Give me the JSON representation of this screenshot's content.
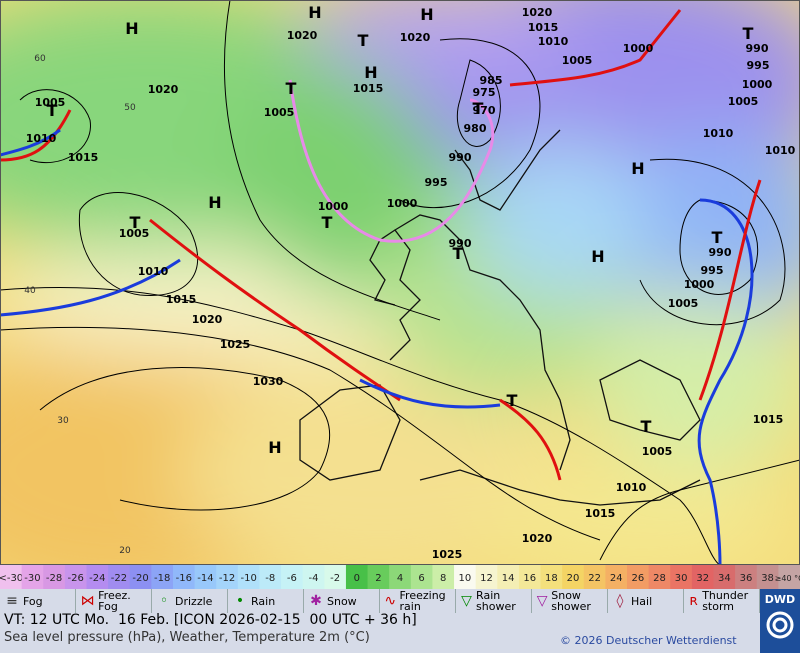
{
  "map": {
    "isobar_labels": [
      "1020",
      "1020",
      "1020",
      "1015",
      "1010",
      "1005",
      "1000",
      "990",
      "995",
      "1000",
      "1005",
      "1010",
      "1010",
      "1015",
      "1020",
      "1005",
      "1010",
      "1015",
      "1005",
      "985",
      "975",
      "970",
      "980",
      "990",
      "995",
      "1000",
      "1000",
      "990",
      "1005",
      "1010",
      "1015",
      "1020",
      "1025",
      "1030",
      "990",
      "995",
      "1000",
      "1005",
      "1005",
      "1010",
      "1015",
      "1015",
      "1020",
      "1025"
    ],
    "pressure_centers": [
      "H",
      "H",
      "H",
      "H",
      "H",
      "H",
      "H",
      "H",
      "T",
      "T",
      "T",
      "T",
      "T",
      "T",
      "T",
      "T",
      "T",
      "T",
      "T"
    ],
    "temperature_labels": [
      "60",
      "50",
      "40",
      "30",
      "20"
    ]
  },
  "scale": {
    "cells": [
      {
        "label": "<-30",
        "color": "#f0c0ee"
      },
      {
        "label": "-30",
        "color": "#e4a4e8"
      },
      {
        "label": "-28",
        "color": "#d898e4"
      },
      {
        "label": "-26",
        "color": "#c894ec"
      },
      {
        "label": "-24",
        "color": "#b48cf0"
      },
      {
        "label": "-22",
        "color": "#a08cf0"
      },
      {
        "label": "-20",
        "color": "#8c90f2"
      },
      {
        "label": "-18",
        "color": "#8ca4f6"
      },
      {
        "label": "-16",
        "color": "#90b8fa"
      },
      {
        "label": "-14",
        "color": "#98c8fa"
      },
      {
        "label": "-12",
        "color": "#a4d4fa"
      },
      {
        "label": "-10",
        "color": "#b0e0fa"
      },
      {
        "label": "-8",
        "color": "#bceaf8"
      },
      {
        "label": "-6",
        "color": "#c6f2f6"
      },
      {
        "label": "-4",
        "color": "#cef6f0"
      },
      {
        "label": "-2",
        "color": "#d8faea"
      },
      {
        "label": "0",
        "color": "#48c048"
      },
      {
        "label": "2",
        "color": "#68cc5c"
      },
      {
        "label": "4",
        "color": "#8cd878"
      },
      {
        "label": "6",
        "color": "#ace490"
      },
      {
        "label": "8",
        "color": "#cceea8"
      },
      {
        "label": "10",
        "color": "#fafaf0"
      },
      {
        "label": "12",
        "color": "#f6f4d0"
      },
      {
        "label": "14",
        "color": "#f4eeb4"
      },
      {
        "label": "16",
        "color": "#f4e898"
      },
      {
        "label": "18",
        "color": "#f4e07c"
      },
      {
        "label": "20",
        "color": "#f4d464"
      },
      {
        "label": "22",
        "color": "#f4c464"
      },
      {
        "label": "24",
        "color": "#f4b064"
      },
      {
        "label": "26",
        "color": "#f29c64"
      },
      {
        "label": "28",
        "color": "#ee8866"
      },
      {
        "label": "30",
        "color": "#ea7464"
      },
      {
        "label": "32",
        "color": "#e26464"
      },
      {
        "label": "34",
        "color": "#d86c6c"
      },
      {
        "label": "36",
        "color": "#cc8080"
      },
      {
        "label": "38",
        "color": "#c49090"
      },
      {
        "label": "≥40 °C",
        "color": "#c4a4a4"
      }
    ]
  },
  "legend": [
    "Fog",
    "Freez. Fog",
    "Drizzle",
    "Rain",
    "Snow",
    "Freezing rain",
    "Rain shower",
    "Snow shower",
    "Hail",
    "Thunder storm"
  ],
  "footer": {
    "valid_time": "VT: 12 UTC Mo.  16 Feb. [ICON 2026-02-15  00 UTC + 36 h]",
    "description": "Sea level pressure (hPa), Weather, Temperature 2m (°C)",
    "copyright": "© 2026 Deutscher Wetterdienst",
    "logo": "DWD"
  }
}
